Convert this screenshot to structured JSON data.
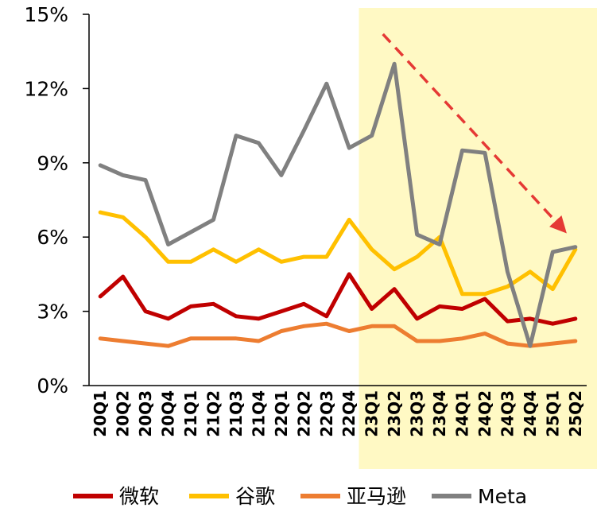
{
  "chart_data": {
    "type": "line",
    "title": "",
    "xlabel": "",
    "ylabel": "",
    "ylim": [
      0,
      15
    ],
    "y_ticks": [
      0,
      3,
      6,
      9,
      12,
      15
    ],
    "y_tick_labels": [
      "0%",
      "3%",
      "6%",
      "9%",
      "12%",
      "15%"
    ],
    "grid": false,
    "legend_position": "bottom",
    "categories": [
      "20Q1",
      "20Q2",
      "20Q3",
      "20Q4",
      "21Q1",
      "21Q2",
      "21Q3",
      "21Q4",
      "22Q1",
      "22Q2",
      "22Q3",
      "22Q4",
      "23Q1",
      "23Q2",
      "23Q3",
      "23Q4",
      "24Q1",
      "24Q2",
      "24Q3",
      "24Q4",
      "25Q1",
      "25Q2"
    ],
    "highlight": {
      "from": "23Q1",
      "to": "25Q2",
      "color": "#FFF9C4"
    },
    "trend_arrow": {
      "from": [
        "23Q1",
        14.2
      ],
      "to": [
        "25Q2",
        6.4
      ],
      "color": "#E53935",
      "style": "dashed"
    },
    "series": [
      {
        "name": "微软",
        "color": "#C00000",
        "values": [
          3.6,
          4.4,
          3.0,
          2.7,
          3.2,
          3.3,
          2.8,
          2.7,
          3.0,
          3.3,
          2.8,
          4.5,
          3.1,
          3.9,
          2.7,
          3.2,
          3.1,
          3.5,
          2.6,
          2.7,
          2.5,
          2.7
        ]
      },
      {
        "name": "谷歌",
        "color": "#FFC000",
        "values": [
          7.0,
          6.8,
          6.0,
          5.0,
          5.0,
          5.5,
          5.0,
          5.5,
          5.0,
          5.2,
          5.2,
          6.7,
          5.5,
          4.7,
          5.2,
          6.0,
          3.7,
          3.7,
          4.0,
          4.6,
          3.9,
          5.5
        ]
      },
      {
        "name": "亚马逊",
        "color": "#ED7D31",
        "values": [
          1.9,
          1.8,
          1.7,
          1.6,
          1.9,
          1.9,
          1.9,
          1.8,
          2.2,
          2.4,
          2.5,
          2.2,
          2.4,
          2.4,
          1.8,
          1.8,
          1.9,
          2.1,
          1.7,
          1.6,
          1.7,
          1.8
        ]
      },
      {
        "name": "Meta",
        "color": "#808080",
        "values": [
          8.9,
          8.5,
          8.3,
          5.7,
          6.2,
          6.7,
          10.1,
          9.8,
          8.5,
          10.3,
          12.2,
          9.6,
          10.1,
          13.0,
          6.1,
          5.7,
          9.5,
          9.4,
          4.6,
          1.6,
          5.4,
          5.6
        ]
      }
    ]
  }
}
